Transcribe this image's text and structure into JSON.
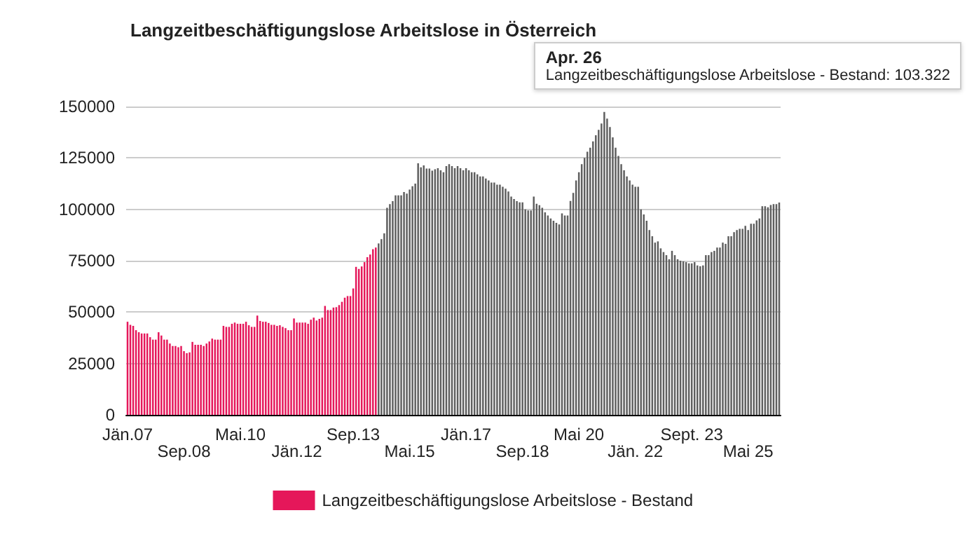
{
  "chart_data": {
    "type": "bar",
    "title": "Langzeitbeschäftigungslose Arbeitslose in Österreich",
    "categories": [
      "Jän.07",
      null,
      null,
      null,
      null,
      null,
      null,
      null,
      null,
      null,
      null,
      null,
      null,
      null,
      null,
      null,
      null,
      null,
      null,
      null,
      "Sep.08",
      null,
      null,
      null,
      null,
      null,
      null,
      null,
      null,
      null,
      null,
      null,
      null,
      null,
      null,
      null,
      null,
      null,
      null,
      null,
      "Mai.10",
      null,
      null,
      null,
      null,
      null,
      null,
      null,
      null,
      null,
      null,
      null,
      null,
      null,
      null,
      null,
      null,
      null,
      null,
      null,
      "Jän.12",
      null,
      null,
      null,
      null,
      null,
      null,
      null,
      null,
      null,
      null,
      null,
      null,
      null,
      null,
      null,
      null,
      null,
      null,
      null,
      "Sep.13",
      null,
      null,
      null,
      null,
      null,
      null,
      null,
      null,
      null,
      null,
      null,
      null,
      null,
      null,
      null,
      null,
      null,
      null,
      null,
      "Mai.15",
      null,
      null,
      null,
      null,
      null,
      null,
      null,
      null,
      null,
      null,
      null,
      null,
      null,
      null,
      null,
      null,
      null,
      null,
      null,
      "Jän.17",
      null,
      null,
      null,
      null,
      null,
      null,
      null,
      null,
      null,
      null,
      null,
      null,
      null,
      null,
      null,
      null,
      null,
      null,
      null,
      "Sep.18",
      null,
      null,
      null,
      null,
      null,
      null,
      null,
      null,
      null,
      null,
      null,
      null,
      null,
      null,
      null,
      null,
      null,
      null,
      null,
      "Mai 20",
      null,
      null,
      null,
      null,
      null,
      null,
      null,
      null,
      null,
      null,
      null,
      null,
      null,
      null,
      null,
      null,
      null,
      null,
      null,
      "Jän. 22",
      null,
      null,
      null,
      null,
      null,
      null,
      null,
      null,
      null,
      null,
      null,
      null,
      null,
      null,
      null,
      null,
      null,
      null,
      null,
      "Sept. 23",
      null,
      null,
      null,
      null,
      null,
      null,
      null,
      null,
      null,
      null,
      null,
      null,
      null,
      null,
      null,
      null,
      null,
      null,
      null,
      "Mai 25",
      null,
      null,
      null,
      null,
      null,
      null,
      null,
      null,
      null,
      null,
      null
    ],
    "series": [
      {
        "name": "Langzeitbeschäftigungslose Arbeitslose - Bestand",
        "color": "#e5175a",
        "values": [
          45300,
          43800,
          43300,
          41200,
          40200,
          39600,
          39600,
          39600,
          37800,
          36600,
          36600,
          40200,
          38600,
          36600,
          36600,
          34700,
          33500,
          33500,
          32900,
          33500,
          31000,
          30000,
          30400,
          35500,
          34100,
          34100,
          34100,
          33500,
          34700,
          35700,
          37100,
          36600,
          36600,
          36600,
          43300,
          42800,
          42800,
          44300,
          44900,
          44300,
          44300,
          44300,
          45300,
          43600,
          42800,
          42800,
          48300,
          45700,
          45300,
          45300,
          44700,
          43800,
          43800,
          43300,
          43600,
          42800,
          42200,
          41200,
          41200,
          46900,
          44900,
          44900,
          44900,
          44900,
          44300,
          46300,
          47300,
          45900,
          46700,
          47300,
          53000,
          51000,
          51000,
          52200,
          52400,
          53400,
          55000,
          57000,
          57800,
          57800,
          61500,
          72000,
          71000,
          72200,
          74300,
          76700,
          78000,
          80600,
          81400,
          83400,
          85500,
          88300,
          100700,
          102500,
          104000,
          106800,
          106800,
          106800,
          108400,
          107600,
          109600,
          111200,
          112500,
          122400,
          120400,
          121400,
          119800,
          119800,
          118800,
          119500,
          120000,
          119000,
          118000,
          121000,
          122000,
          121000,
          120000,
          121000,
          120000,
          119000,
          120000,
          119000,
          118000,
          118000,
          117000,
          116000,
          116000,
          115000,
          114000,
          113000,
          113000,
          112000,
          112000,
          111000,
          110000,
          108700,
          106200,
          105000,
          104000,
          103400,
          103400,
          100000,
          99500,
          99500,
          106200,
          102700,
          102000,
          100700,
          98500,
          97000,
          95500,
          94400,
          93400,
          92600,
          98000,
          97000,
          97000,
          104100,
          108000,
          114000,
          118000,
          122000,
          125000,
          128000,
          130000,
          133000,
          136000,
          138700,
          141700,
          147400,
          144100,
          140000,
          135000,
          130000,
          126000,
          122000,
          119000,
          116000,
          114000,
          112000,
          111000,
          111000,
          100000,
          97500,
          94400,
          89900,
          86900,
          83800,
          84400,
          81000,
          79200,
          77700,
          75700,
          79800,
          77700,
          75700,
          75000,
          74700,
          74300,
          73700,
          73700,
          74300,
          72700,
          72300,
          72700,
          77700,
          77700,
          79200,
          79800,
          81400,
          81400,
          83800,
          83200,
          86900,
          86900,
          88900,
          89900,
          90500,
          90500,
          92000,
          89900,
          93000,
          93000,
          94600,
          95500,
          101500,
          101500,
          101000,
          102100,
          102500,
          102500,
          103300
        ],
        "colors": [
          "#e5175a",
          "#e5175a",
          "#e5175a",
          "#e5175a",
          "#e5175a",
          "#e5175a",
          "#e5175a",
          "#e5175a",
          "#e5175a",
          "#e5175a",
          "#e5175a",
          "#e5175a",
          "#e5175a",
          "#e5175a",
          "#e5175a",
          "#e5175a",
          "#e5175a",
          "#e5175a",
          "#e5175a",
          "#e5175a",
          "#e5175a",
          "#e5175a",
          "#e5175a",
          "#e5175a",
          "#e5175a",
          "#e5175a",
          "#e5175a",
          "#e5175a",
          "#e5175a",
          "#e5175a",
          "#e5175a",
          "#e5175a",
          "#e5175a",
          "#e5175a",
          "#e5175a",
          "#e5175a",
          "#e5175a",
          "#e5175a",
          "#e5175a",
          "#e5175a",
          "#e5175a",
          "#e5175a",
          "#e5175a",
          "#e5175a",
          "#e5175a",
          "#e5175a",
          "#e5175a",
          "#e5175a",
          "#e5175a",
          "#e5175a",
          "#e5175a",
          "#e5175a",
          "#e5175a",
          "#e5175a",
          "#e5175a",
          "#e5175a",
          "#e5175a",
          "#e5175a",
          "#e5175a",
          "#e5175a",
          "#e5175a",
          "#e5175a",
          "#e5175a",
          "#e5175a",
          "#e5175a",
          "#e5175a",
          "#e5175a",
          "#e5175a",
          "#e5175a",
          "#e5175a",
          "#e5175a",
          "#e5175a",
          "#e5175a",
          "#e5175a",
          "#e5175a",
          "#e5175a",
          "#e5175a",
          "#e5175a",
          "#e5175a",
          "#e5175a",
          "#e5175a",
          "#e5175a",
          "#e5175a",
          "#e5175a",
          "#e5175a",
          "#e5175a",
          "#e5175a",
          "#e5175a",
          "#e5175a",
          "#5f5f5f",
          "#5f5f5f",
          "#5f5f5f",
          "#5f5f5f",
          "#5f5f5f",
          "#5f5f5f",
          "#5f5f5f",
          "#5f5f5f",
          "#5f5f5f",
          "#5f5f5f",
          "#5f5f5f",
          "#5f5f5f",
          "#5f5f5f",
          "#5f5f5f",
          "#5f5f5f",
          "#5f5f5f",
          "#5f5f5f",
          "#5f5f5f",
          "#5f5f5f",
          "#5f5f5f",
          "#5f5f5f",
          "#5f5f5f",
          "#5f5f5f",
          "#5f5f5f",
          "#5f5f5f",
          "#5f5f5f",
          "#5f5f5f",
          "#5f5f5f",
          "#5f5f5f",
          "#5f5f5f",
          "#5f5f5f",
          "#5f5f5f",
          "#5f5f5f",
          "#5f5f5f",
          "#5f5f5f",
          "#5f5f5f",
          "#5f5f5f",
          "#5f5f5f",
          "#5f5f5f",
          "#5f5f5f",
          "#5f5f5f",
          "#5f5f5f",
          "#5f5f5f",
          "#5f5f5f",
          "#5f5f5f",
          "#5f5f5f",
          "#5f5f5f",
          "#5f5f5f",
          "#5f5f5f",
          "#5f5f5f",
          "#5f5f5f",
          "#5f5f5f",
          "#5f5f5f",
          "#5f5f5f",
          "#5f5f5f",
          "#5f5f5f",
          "#5f5f5f",
          "#5f5f5f",
          "#5f5f5f",
          "#5f5f5f",
          "#5f5f5f",
          "#5f5f5f",
          "#5f5f5f",
          "#5f5f5f",
          "#5f5f5f",
          "#5f5f5f",
          "#5f5f5f",
          "#5f5f5f",
          "#5f5f5f",
          "#5f5f5f",
          "#5f5f5f",
          "#5f5f5f",
          "#5f5f5f",
          "#5f5f5f",
          "#5f5f5f",
          "#5f5f5f",
          "#5f5f5f",
          "#5f5f5f",
          "#5f5f5f",
          "#5f5f5f",
          "#5f5f5f",
          "#5f5f5f",
          "#5f5f5f",
          "#5f5f5f",
          "#5f5f5f",
          "#5f5f5f",
          "#5f5f5f",
          "#5f5f5f",
          "#5f5f5f",
          "#5f5f5f",
          "#5f5f5f",
          "#5f5f5f",
          "#5f5f5f",
          "#5f5f5f",
          "#5f5f5f",
          "#5f5f5f",
          "#5f5f5f",
          "#5f5f5f",
          "#5f5f5f",
          "#5f5f5f",
          "#5f5f5f",
          "#5f5f5f",
          "#5f5f5f",
          "#5f5f5f",
          "#5f5f5f",
          "#5f5f5f",
          "#5f5f5f",
          "#5f5f5f",
          "#5f5f5f",
          "#5f5f5f",
          "#5f5f5f",
          "#5f5f5f",
          "#5f5f5f",
          "#5f5f5f",
          "#5f5f5f",
          "#5f5f5f",
          "#5f5f5f",
          "#5f5f5f",
          "#5f5f5f",
          "#5f5f5f",
          "#5f5f5f",
          "#5f5f5f",
          "#5f5f5f",
          "#5f5f5f",
          "#5f5f5f",
          "#5f5f5f",
          "#5f5f5f",
          "#5f5f5f",
          "#5f5f5f",
          "#5f5f5f",
          "#5f5f5f",
          "#5f5f5f",
          "#5f5f5f",
          "#5f5f5f",
          "#5f5f5f",
          "#5f5f5f",
          "#5f5f5f",
          "#5f5f5f",
          "#5f5f5f",
          "#5f5f5f",
          "#5f5f5f",
          "#5f5f5f",
          "#5f5f5f"
        ]
      }
    ],
    "ylim": [
      0,
      150000
    ],
    "yticks": [
      0,
      25000,
      50000,
      75000,
      100000,
      125000,
      150000
    ],
    "grid": "y",
    "legend": "bottom",
    "annotations": [
      "Apr. 26",
      "Langzeitbeschäftigungslose Arbeitslose - Bestand: 103.322"
    ]
  }
}
